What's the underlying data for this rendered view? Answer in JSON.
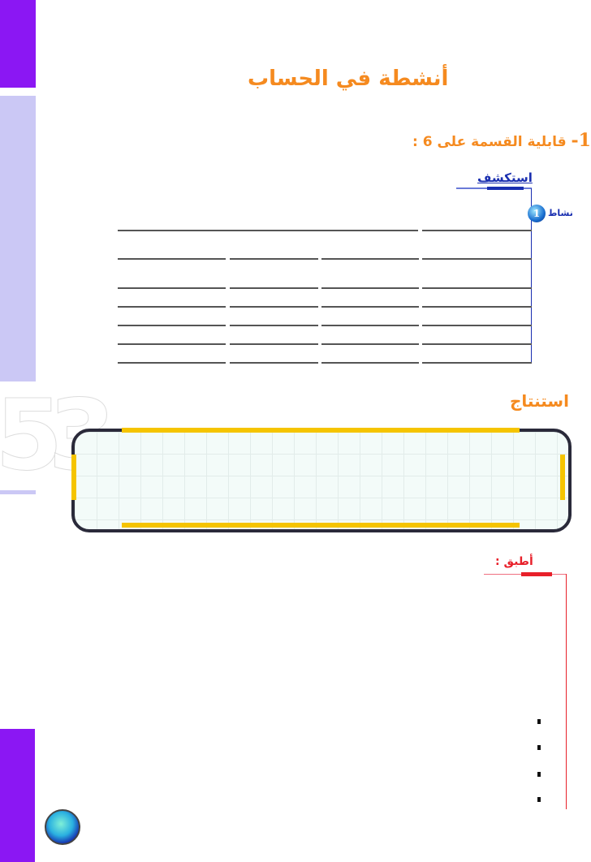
{
  "page_title": "أنشطة في الحساب",
  "section": {
    "number": "1-",
    "title": "قابلية القسمة على 6 :"
  },
  "explore_label": "استكشف",
  "activity": {
    "label": "نشاط",
    "number": "1"
  },
  "conclusion_label": "استنتاج",
  "apply_label": "أطبق :",
  "page_number": "53",
  "colors": {
    "accent_orange": "#f58a1f",
    "heading_blue": "#1a2fb0",
    "apply_red": "#e8202a",
    "sidebar_purple": "#8b17f3",
    "sidebar_lavender": "#cbc8f5",
    "box_frame_yellow": "#f5c400"
  }
}
